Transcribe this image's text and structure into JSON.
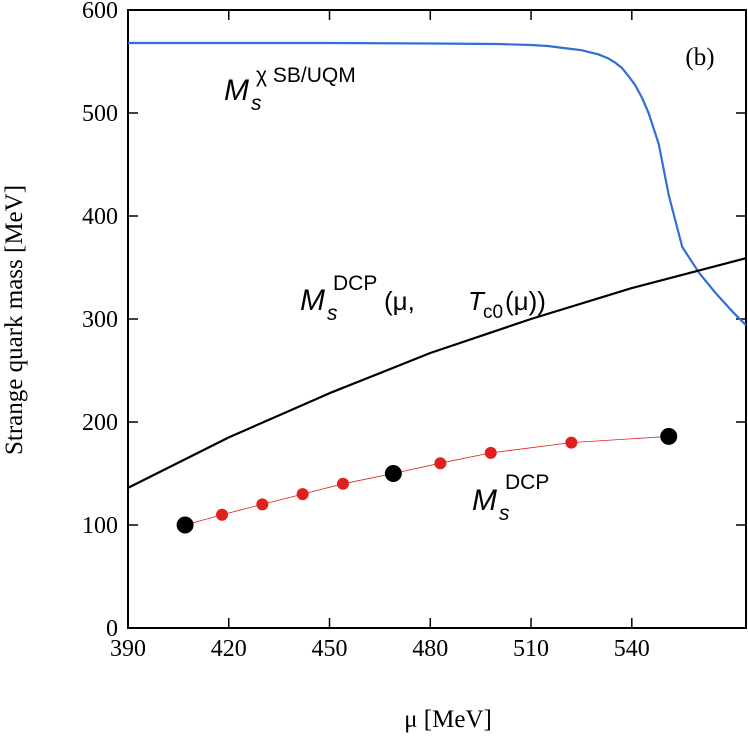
{
  "chart_data": {
    "type": "line",
    "panel_label": "(b)",
    "xlabel": "μ  [MeV]",
    "ylabel": "Strange quark mass  [MeV]",
    "xlim": [
      390,
      574
    ],
    "ylim": [
      0,
      600
    ],
    "xticks": [
      390,
      420,
      450,
      480,
      510,
      540
    ],
    "yticks": [
      0,
      100,
      200,
      300,
      400,
      500,
      600
    ],
    "grid": false,
    "legend": "none",
    "series": [
      {
        "color": "#2f6fd6",
        "x": [
          390,
          420,
          450,
          480,
          500,
          510,
          515,
          520,
          525,
          530,
          533,
          535,
          537,
          539,
          541,
          543,
          545,
          548,
          551,
          555,
          560,
          565,
          570,
          574
        ],
        "y": [
          568,
          568,
          568,
          567.5,
          567,
          566,
          565,
          563,
          561,
          557,
          553,
          549,
          544,
          536,
          527,
          515,
          500,
          470,
          420,
          370,
          345,
          325,
          307,
          294
        ]
      },
      {
        "color": "#000000",
        "x": [
          390,
          420,
          450,
          480,
          510,
          540,
          574
        ],
        "y": [
          136,
          185,
          228,
          267,
          300,
          330,
          359
        ]
      },
      {
        "color": "#e0201c",
        "x": [
          407,
          418,
          430,
          442,
          454,
          469,
          483,
          498,
          522,
          551
        ],
        "y": [
          100,
          110,
          120,
          130,
          140,
          150,
          160,
          170,
          180,
          186
        ]
      }
    ],
    "large_points": [
      {
        "x": 407,
        "y": 100
      },
      {
        "x": 469,
        "y": 150
      },
      {
        "x": 551,
        "y": 186
      }
    ],
    "annotations": {
      "blue": {
        "base": "M",
        "sub": "s",
        "sup": "χ SB/UQM"
      },
      "black": {
        "base": "M",
        "sub": "s",
        "sup": "DCP",
        "args_open": " (μ, ",
        "t": "T",
        "t_sub": "c0",
        "args_close": "(μ))"
      },
      "red": {
        "base": "M",
        "sub": "s",
        "sup": "DCP"
      }
    }
  }
}
